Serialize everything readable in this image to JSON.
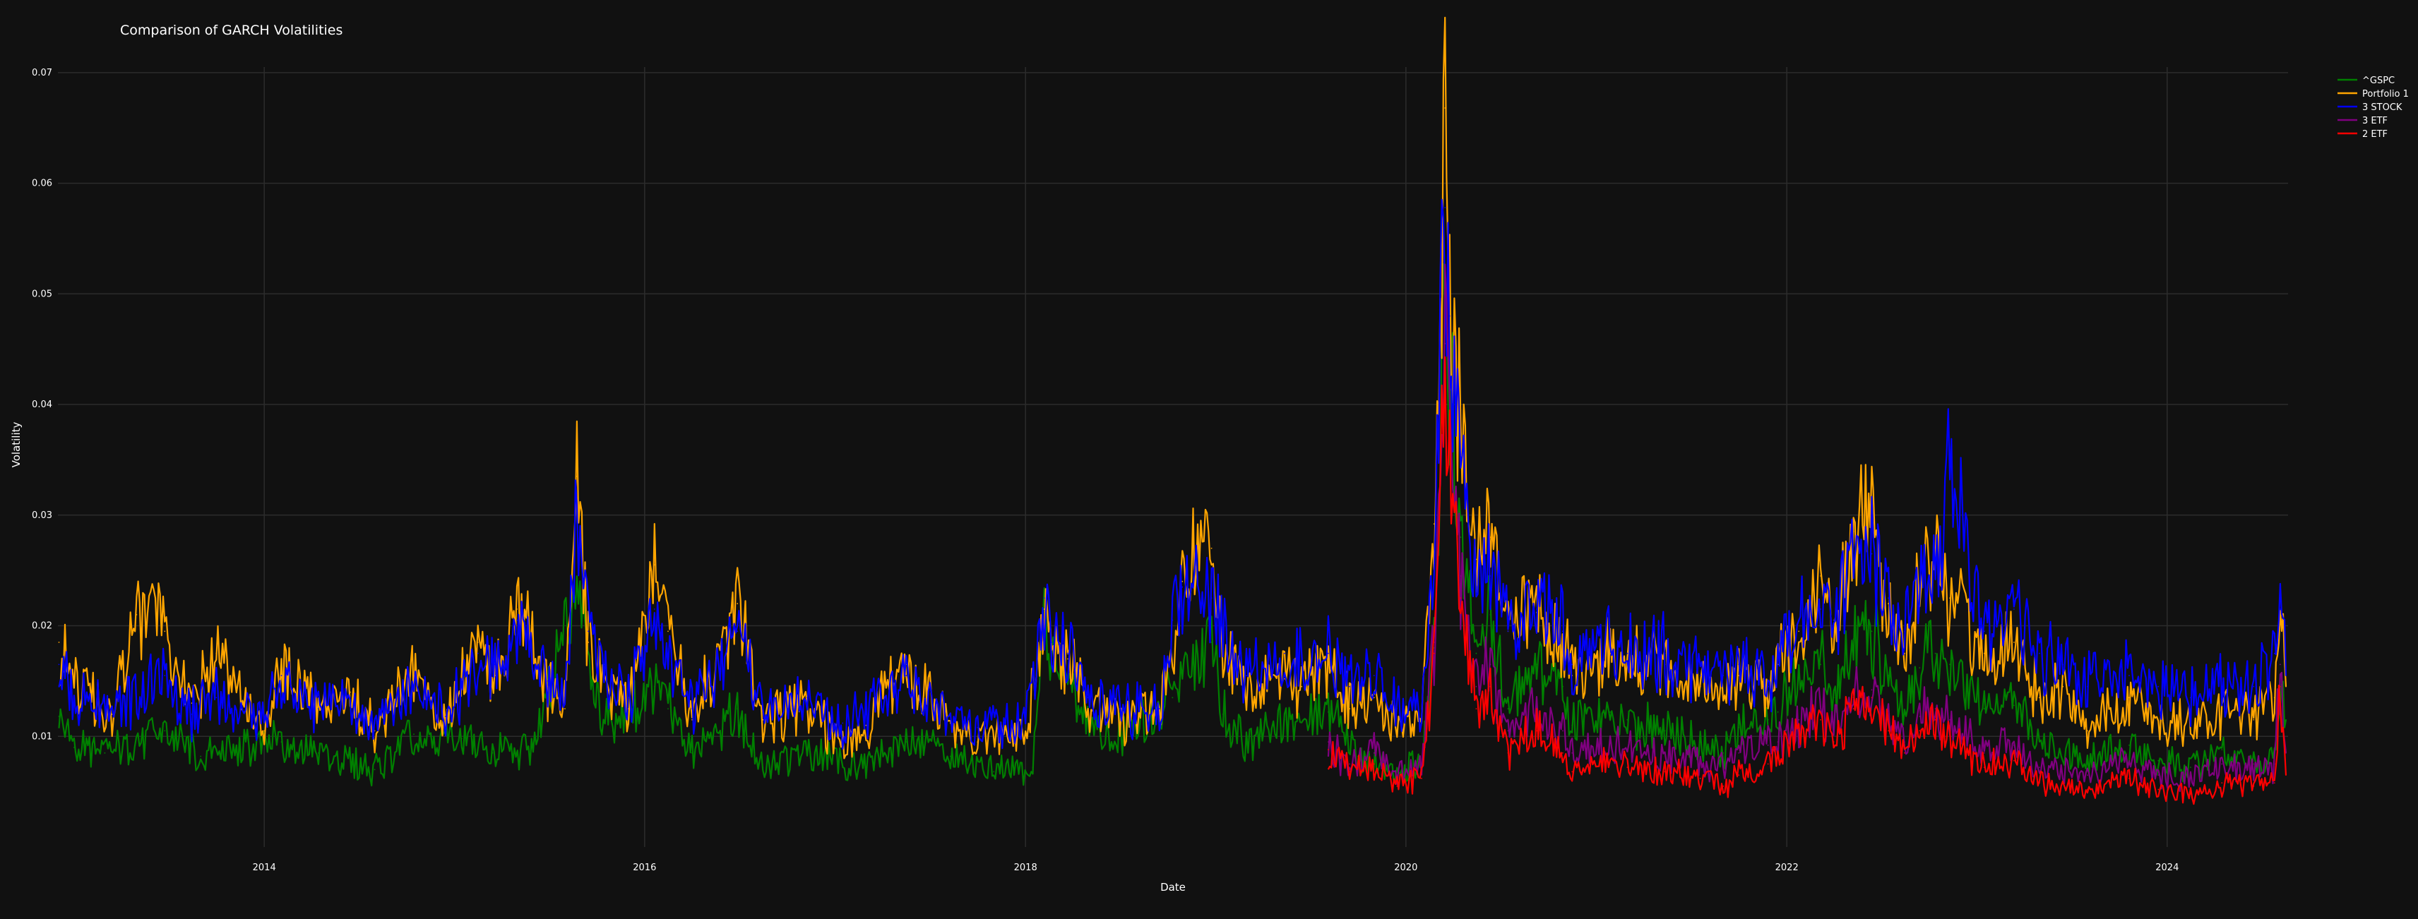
{
  "chart_data": {
    "type": "line",
    "title": "Comparison of GARCH Volatilities",
    "xlabel": "Date",
    "ylabel": "Volatility",
    "xlim": [
      "2012-12-01",
      "2024-08-20"
    ],
    "ylim": [
      0,
      0.0705
    ],
    "x_ticks": [
      "2014",
      "2016",
      "2018",
      "2020",
      "2022",
      "2024"
    ],
    "y_ticks": [
      "0.01",
      "0.02",
      "0.03",
      "0.04",
      "0.05",
      "0.06",
      "0.07"
    ],
    "grid": true,
    "legend_position": "top-right",
    "series": [
      {
        "name": "^GSPC",
        "color": "#008000",
        "x": [
          "2012-12-03",
          "2013-01-01",
          "2013-03-01",
          "2013-06-24",
          "2013-09-01",
          "2014-02-03",
          "2014-04-15",
          "2014-08-01",
          "2014-10-15",
          "2015-01-15",
          "2015-03-15",
          "2015-06-01",
          "2015-08-24",
          "2015-09-20",
          "2015-11-01",
          "2016-01-20",
          "2016-02-15",
          "2016-04-01",
          "2016-06-27",
          "2016-08-15",
          "2016-11-08",
          "2017-03-01",
          "2017-05-17",
          "2017-08-10",
          "2017-11-01",
          "2018-01-15",
          "2018-02-06",
          "2018-02-20",
          "2018-03-23",
          "2018-04-15",
          "2018-06-15",
          "2018-10-10",
          "2018-10-29",
          "2018-12-24",
          "2019-01-15",
          "2019-03-01",
          "2019-05-13",
          "2019-08-05",
          "2019-10-01",
          "2019-12-15",
          "2020-01-31",
          "2020-02-24",
          "2020-03-16",
          "2020-03-25",
          "2020-04-15",
          "2020-05-15",
          "2020-06-11",
          "2020-07-15",
          "2020-09-08",
          "2020-10-28",
          "2020-11-15",
          "2021-01-27",
          "2021-03-01",
          "2021-05-12",
          "2021-07-19",
          "2021-09-01",
          "2021-10-01",
          "2021-11-26",
          "2021-12-15",
          "2022-01-24",
          "2022-03-07",
          "2022-04-01",
          "2022-05-09",
          "2022-06-13",
          "2022-07-15",
          "2022-08-15",
          "2022-09-13",
          "2022-10-13",
          "2022-11-10",
          "2023-01-15",
          "2023-03-13",
          "2023-05-01",
          "2023-08-01",
          "2023-10-20",
          "2023-12-15",
          "2024-02-15",
          "2024-04-15",
          "2024-06-15",
          "2024-07-25",
          "2024-08-05",
          "2024-08-16"
        ],
        "values": [
          0.0118,
          0.009,
          0.0085,
          0.0105,
          0.0082,
          0.0095,
          0.0085,
          0.007,
          0.0102,
          0.0098,
          0.0085,
          0.0088,
          0.0245,
          0.0145,
          0.0105,
          0.0145,
          0.0125,
          0.0085,
          0.0125,
          0.0072,
          0.0085,
          0.0072,
          0.0095,
          0.0082,
          0.0068,
          0.0072,
          0.0205,
          0.0168,
          0.0155,
          0.012,
          0.0095,
          0.0135,
          0.0155,
          0.0185,
          0.012,
          0.0095,
          0.0115,
          0.0122,
          0.0082,
          0.0065,
          0.0075,
          0.018,
          0.0515,
          0.042,
          0.028,
          0.0175,
          0.021,
          0.0125,
          0.0165,
          0.0145,
          0.011,
          0.0122,
          0.0115,
          0.0105,
          0.0095,
          0.0085,
          0.0108,
          0.0115,
          0.0122,
          0.0155,
          0.0165,
          0.0135,
          0.0188,
          0.0195,
          0.0155,
          0.012,
          0.0162,
          0.0175,
          0.0165,
          0.0125,
          0.0128,
          0.0095,
          0.0075,
          0.0092,
          0.0078,
          0.0072,
          0.0088,
          0.0075,
          0.0082,
          0.0135,
          0.0115
        ]
      },
      {
        "name": "Portfolio 1",
        "color": "#FFA500",
        "x": [
          "2012-12-03",
          "2013-01-01",
          "2013-03-15",
          "2013-05-01",
          "2013-06-24",
          "2013-08-15",
          "2013-10-01",
          "2014-01-01",
          "2014-02-03",
          "2014-04-15",
          "2014-06-15",
          "2014-08-01",
          "2014-10-15",
          "2014-12-15",
          "2015-02-15",
          "2015-03-20",
          "2015-05-01",
          "2015-06-29",
          "2015-08-01",
          "2015-08-24",
          "2015-09-15",
          "2015-10-15",
          "2015-12-01",
          "2016-01-20",
          "2016-02-15",
          "2016-04-01",
          "2016-06-27",
          "2016-08-15",
          "2016-11-08",
          "2017-01-15",
          "2017-03-01",
          "2017-05-17",
          "2017-08-10",
          "2017-10-01",
          "2018-01-01",
          "2018-02-06",
          "2018-02-20",
          "2018-03-23",
          "2018-05-01",
          "2018-07-01",
          "2018-09-15",
          "2018-10-10",
          "2018-10-29",
          "2018-12-24",
          "2019-01-15",
          "2019-03-01",
          "2019-05-13",
          "2019-06-15",
          "2019-08-05",
          "2019-09-15",
          "2019-11-01",
          "2019-12-15",
          "2020-01-31",
          "2020-02-24",
          "2020-03-16",
          "2020-03-25",
          "2020-04-15",
          "2020-05-15",
          "2020-06-11",
          "2020-07-15",
          "2020-09-08",
          "2020-10-28",
          "2020-11-15",
          "2021-01-27",
          "2021-03-01",
          "2021-05-12",
          "2021-07-19",
          "2021-09-01",
          "2021-10-01",
          "2021-11-26",
          "2021-12-15",
          "2022-01-24",
          "2022-03-07",
          "2022-04-01",
          "2022-05-09",
          "2022-06-13",
          "2022-07-15",
          "2022-08-15",
          "2022-09-13",
          "2022-10-13",
          "2022-11-10",
          "2023-01-15",
          "2023-03-13",
          "2023-05-01",
          "2023-06-15",
          "2023-08-01",
          "2023-10-20",
          "2023-12-15",
          "2024-02-15",
          "2024-04-15",
          "2024-06-15",
          "2024-07-25",
          "2024-08-05",
          "2024-08-16"
        ],
        "values": [
          0.0185,
          0.0145,
          0.012,
          0.021,
          0.0195,
          0.013,
          0.0175,
          0.0105,
          0.0165,
          0.0125,
          0.014,
          0.0105,
          0.0155,
          0.0115,
          0.0185,
          0.0155,
          0.0215,
          0.0145,
          0.0125,
          0.0335,
          0.0185,
          0.0155,
          0.0125,
          0.0255,
          0.0195,
          0.0115,
          0.022,
          0.0115,
          0.0125,
          0.0095,
          0.011,
          0.0165,
          0.0112,
          0.0095,
          0.0102,
          0.0215,
          0.0185,
          0.017,
          0.0125,
          0.0112,
          0.0125,
          0.0165,
          0.024,
          0.027,
          0.018,
          0.0135,
          0.0152,
          0.0145,
          0.0165,
          0.0125,
          0.0135,
          0.0102,
          0.0112,
          0.0292,
          0.0668,
          0.048,
          0.0395,
          0.026,
          0.028,
          0.0195,
          0.0212,
          0.0195,
          0.0155,
          0.0175,
          0.0165,
          0.0165,
          0.0145,
          0.0135,
          0.0155,
          0.0145,
          0.0165,
          0.0195,
          0.0245,
          0.0205,
          0.0285,
          0.0295,
          0.022,
          0.0175,
          0.0235,
          0.0255,
          0.0225,
          0.0175,
          0.0185,
          0.0135,
          0.0145,
          0.0105,
          0.0135,
          0.0112,
          0.0115,
          0.0125,
          0.0115,
          0.0135,
          0.0225,
          0.0145
        ]
      },
      {
        "name": "3 STOCK",
        "color": "#0000FF",
        "x": [
          "2012-12-03",
          "2013-01-01",
          "2013-03-15",
          "2013-06-24",
          "2013-08-15",
          "2013-10-01",
          "2014-01-01",
          "2014-02-03",
          "2014-04-15",
          "2014-06-15",
          "2014-08-01",
          "2014-10-15",
          "2014-12-15",
          "2015-02-15",
          "2015-03-20",
          "2015-05-01",
          "2015-06-29",
          "2015-08-01",
          "2015-08-24",
          "2015-09-15",
          "2015-10-15",
          "2015-12-01",
          "2016-01-20",
          "2016-02-15",
          "2016-04-01",
          "2016-06-27",
          "2016-08-15",
          "2016-11-08",
          "2017-01-15",
          "2017-03-01",
          "2017-05-17",
          "2017-08-10",
          "2017-10-01",
          "2018-01-01",
          "2018-02-06",
          "2018-02-20",
          "2018-03-23",
          "2018-05-01",
          "2018-07-01",
          "2018-09-15",
          "2018-10-10",
          "2018-10-29",
          "2018-12-24",
          "2019-01-15",
          "2019-03-01",
          "2019-05-13",
          "2019-06-15",
          "2019-08-05",
          "2019-09-15",
          "2019-11-01",
          "2019-12-15",
          "2020-01-31",
          "2020-02-24",
          "2020-03-16",
          "2020-03-25",
          "2020-04-15",
          "2020-05-15",
          "2020-06-11",
          "2020-07-15",
          "2020-09-08",
          "2020-10-28",
          "2020-11-15",
          "2021-01-27",
          "2021-03-01",
          "2021-05-12",
          "2021-07-19",
          "2021-09-01",
          "2021-10-01",
          "2021-11-26",
          "2021-12-15",
          "2022-01-24",
          "2022-03-07",
          "2022-04-01",
          "2022-05-09",
          "2022-06-13",
          "2022-07-15",
          "2022-08-15",
          "2022-09-13",
          "2022-10-13",
          "2022-11-10",
          "2023-01-15",
          "2023-03-13",
          "2023-05-01",
          "2023-06-15",
          "2023-08-01",
          "2023-10-20",
          "2023-12-15",
          "2024-02-15",
          "2024-04-15",
          "2024-06-15",
          "2024-07-25",
          "2024-08-05",
          "2024-08-16"
        ],
        "values": [
          0.0165,
          0.0135,
          0.0125,
          0.0155,
          0.012,
          0.0135,
          0.0115,
          0.0155,
          0.0125,
          0.0135,
          0.0112,
          0.0145,
          0.0118,
          0.0175,
          0.0165,
          0.0205,
          0.015,
          0.0135,
          0.0305,
          0.0195,
          0.0165,
          0.0135,
          0.0215,
          0.0175,
          0.0125,
          0.0195,
          0.0125,
          0.0135,
          0.0112,
          0.012,
          0.0155,
          0.0118,
          0.0108,
          0.0112,
          0.0225,
          0.0185,
          0.0175,
          0.0135,
          0.0125,
          0.0125,
          0.0205,
          0.0235,
          0.0225,
          0.0195,
          0.0155,
          0.0175,
          0.0165,
          0.0175,
          0.0145,
          0.0155,
          0.0125,
          0.0125,
          0.0255,
          0.0578,
          0.048,
          0.035,
          0.0235,
          0.0245,
          0.0195,
          0.0215,
          0.0195,
          0.0165,
          0.0185,
          0.0175,
          0.0175,
          0.0155,
          0.0155,
          0.0165,
          0.0145,
          0.0175,
          0.0205,
          0.0215,
          0.0205,
          0.0255,
          0.0265,
          0.0225,
          0.0195,
          0.0235,
          0.0255,
          0.0342,
          0.0195,
          0.0215,
          0.0175,
          0.0165,
          0.0145,
          0.0155,
          0.0145,
          0.0135,
          0.0145,
          0.0145,
          0.0175,
          0.0215,
          0.0155
        ]
      },
      {
        "name": "3 ETF",
        "color": "#800080",
        "x": [
          "2019-08-05",
          "2019-09-15",
          "2019-11-01",
          "2019-12-15",
          "2020-01-31",
          "2020-02-24",
          "2020-03-16",
          "2020-03-25",
          "2020-04-15",
          "2020-05-15",
          "2020-06-11",
          "2020-07-15",
          "2020-09-08",
          "2020-10-28",
          "2020-11-15",
          "2021-01-27",
          "2021-03-01",
          "2021-05-12",
          "2021-07-19",
          "2021-09-01",
          "2021-10-01",
          "2021-11-26",
          "2021-12-15",
          "2022-01-24",
          "2022-03-07",
          "2022-04-01",
          "2022-05-09",
          "2022-06-13",
          "2022-07-15",
          "2022-08-15",
          "2022-09-13",
          "2022-10-13",
          "2022-11-10",
          "2023-01-15",
          "2023-03-13",
          "2023-05-01",
          "2023-08-01",
          "2023-10-20",
          "2023-12-15",
          "2024-02-15",
          "2024-04-15",
          "2024-06-15",
          "2024-07-25",
          "2024-08-05",
          "2024-08-16"
        ],
        "values": [
          0.0095,
          0.0075,
          0.0085,
          0.0065,
          0.0072,
          0.0185,
          0.0455,
          0.0385,
          0.0245,
          0.0145,
          0.0165,
          0.0105,
          0.0125,
          0.0105,
          0.0085,
          0.0095,
          0.0088,
          0.0085,
          0.0078,
          0.0072,
          0.0085,
          0.0092,
          0.0095,
          0.0115,
          0.0125,
          0.0105,
          0.0135,
          0.0142,
          0.0115,
          0.0095,
          0.0118,
          0.0125,
          0.0115,
          0.0085,
          0.0092,
          0.0072,
          0.0065,
          0.0078,
          0.0065,
          0.0062,
          0.0075,
          0.0068,
          0.0075,
          0.0165,
          0.0085
        ]
      },
      {
        "name": "2 ETF",
        "color": "#FF0000",
        "x": [
          "2019-08-05",
          "2019-09-15",
          "2019-11-01",
          "2019-12-15",
          "2020-01-31",
          "2020-02-24",
          "2020-03-16",
          "2020-03-25",
          "2020-04-15",
          "2020-05-15",
          "2020-06-11",
          "2020-07-15",
          "2020-09-08",
          "2020-10-28",
          "2020-11-15",
          "2021-01-27",
          "2021-03-01",
          "2021-05-12",
          "2021-07-19",
          "2021-09-01",
          "2021-10-01",
          "2021-11-26",
          "2021-12-15",
          "2022-01-24",
          "2022-03-07",
          "2022-04-01",
          "2022-05-09",
          "2022-06-13",
          "2022-07-15",
          "2022-08-15",
          "2022-09-13",
          "2022-10-13",
          "2022-11-10",
          "2023-01-15",
          "2023-03-13",
          "2023-05-01",
          "2023-08-01",
          "2023-10-20",
          "2023-12-15",
          "2024-02-15",
          "2024-04-15",
          "2024-06-15",
          "2024-07-25",
          "2024-08-05",
          "2024-08-16"
        ],
        "values": [
          0.0088,
          0.0068,
          0.0075,
          0.0055,
          0.0062,
          0.0175,
          0.0435,
          0.0365,
          0.0225,
          0.0125,
          0.0145,
          0.0085,
          0.0105,
          0.0085,
          0.0068,
          0.0078,
          0.0072,
          0.0068,
          0.0062,
          0.0055,
          0.0065,
          0.0075,
          0.0082,
          0.0105,
          0.0115,
          0.0095,
          0.0125,
          0.0135,
          0.0105,
          0.0085,
          0.0105,
          0.0115,
          0.0102,
          0.0072,
          0.0078,
          0.0058,
          0.0052,
          0.0062,
          0.0052,
          0.0048,
          0.0058,
          0.0055,
          0.0058,
          0.0145,
          0.0065
        ]
      }
    ]
  }
}
